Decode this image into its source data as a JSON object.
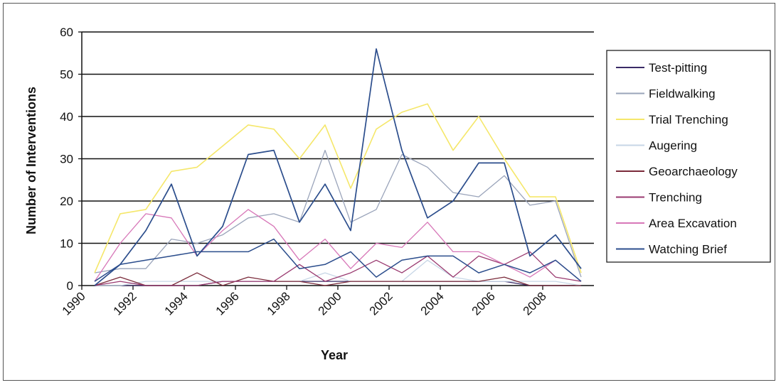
{
  "chart_data": {
    "type": "line",
    "xlabel": "Year",
    "ylabel": "Number of Interventions",
    "ylim": [
      0,
      60
    ],
    "yticks": [
      0,
      10,
      20,
      30,
      40,
      50,
      60
    ],
    "xlim": [
      1990,
      2010
    ],
    "xticks": [
      1990,
      1992,
      1994,
      1996,
      1998,
      2000,
      2002,
      2004,
      2006,
      2008
    ],
    "grid": "horizontal",
    "legend_position": "right",
    "x": [
      1990.5,
      1991.5,
      1992.5,
      1993.5,
      1994.5,
      1995.5,
      1996.5,
      1997.5,
      1998.5,
      1999.5,
      2000.5,
      2001.5,
      2002.5,
      2003.5,
      2004.5,
      2005.5,
      2006.5,
      2007.5,
      2008.5,
      2009.5
    ],
    "series": [
      {
        "name": "Test-pitting",
        "color": "#3a2a66",
        "width": 1.3,
        "dash": "",
        "values": [
          0,
          0,
          0,
          0,
          0,
          1,
          1,
          1,
          1,
          1,
          1,
          1,
          1,
          1,
          1,
          1,
          1,
          0,
          0,
          0
        ]
      },
      {
        "name": "Fieldwalking",
        "color": "#9aa4ba",
        "width": 1.3,
        "dash": "",
        "values": [
          3,
          4,
          4,
          11,
          10,
          12,
          16,
          17,
          15,
          32,
          15,
          18,
          31,
          28,
          22,
          21,
          26,
          19,
          20,
          2
        ]
      },
      {
        "name": "Trial Trenching",
        "color": "#f5e76a",
        "width": 1.6,
        "dash": "",
        "values": [
          3,
          17,
          18,
          27,
          28,
          33,
          38,
          37,
          30,
          38,
          23,
          37,
          41,
          43,
          32,
          40,
          30,
          21,
          21,
          3
        ]
      },
      {
        "name": "Augering",
        "color": "#c7d6e6",
        "width": 1.3,
        "dash": "",
        "values": [
          0,
          0,
          1,
          1,
          1,
          1,
          1,
          1,
          1,
          3,
          1,
          1,
          1,
          6,
          2,
          1,
          1,
          1,
          1,
          0
        ]
      },
      {
        "name": "Geoarchaeology",
        "color": "#7a2a3a",
        "width": 1.3,
        "dash": "",
        "values": [
          0,
          2,
          0,
          0,
          3,
          0,
          2,
          1,
          1,
          0,
          1,
          1,
          1,
          1,
          1,
          1,
          2,
          0,
          0,
          0
        ]
      },
      {
        "name": "Trenching",
        "color": "#9a3a70",
        "width": 1.3,
        "dash": "",
        "values": [
          0,
          1,
          0,
          0,
          0,
          1,
          1,
          1,
          5,
          1,
          3,
          6,
          3,
          7,
          2,
          7,
          5,
          8,
          2,
          1
        ]
      },
      {
        "name": "Area Excavation",
        "color": "#d777b8",
        "width": 1.3,
        "dash": "",
        "values": [
          1,
          10,
          17,
          16,
          7,
          13,
          18,
          14,
          6,
          11,
          4,
          10,
          9,
          15,
          8,
          8,
          5,
          2,
          6,
          1
        ]
      },
      {
        "name": "Watching Brief",
        "color": "#2b4d8c",
        "width": 1.7,
        "dash": "",
        "values": [
          0,
          5,
          13,
          24,
          7,
          14,
          31,
          32,
          15,
          24,
          13,
          56,
          32,
          16,
          20,
          29,
          29,
          7,
          12,
          4
        ]
      },
      {
        "name": "",
        "color": "#2b4d8c",
        "width": 1.5,
        "dash": "",
        "values": [
          1,
          5,
          6,
          7,
          8,
          8,
          8,
          11,
          4,
          5,
          8,
          2,
          6,
          7,
          7,
          3,
          5,
          3,
          6,
          1
        ]
      }
    ]
  }
}
